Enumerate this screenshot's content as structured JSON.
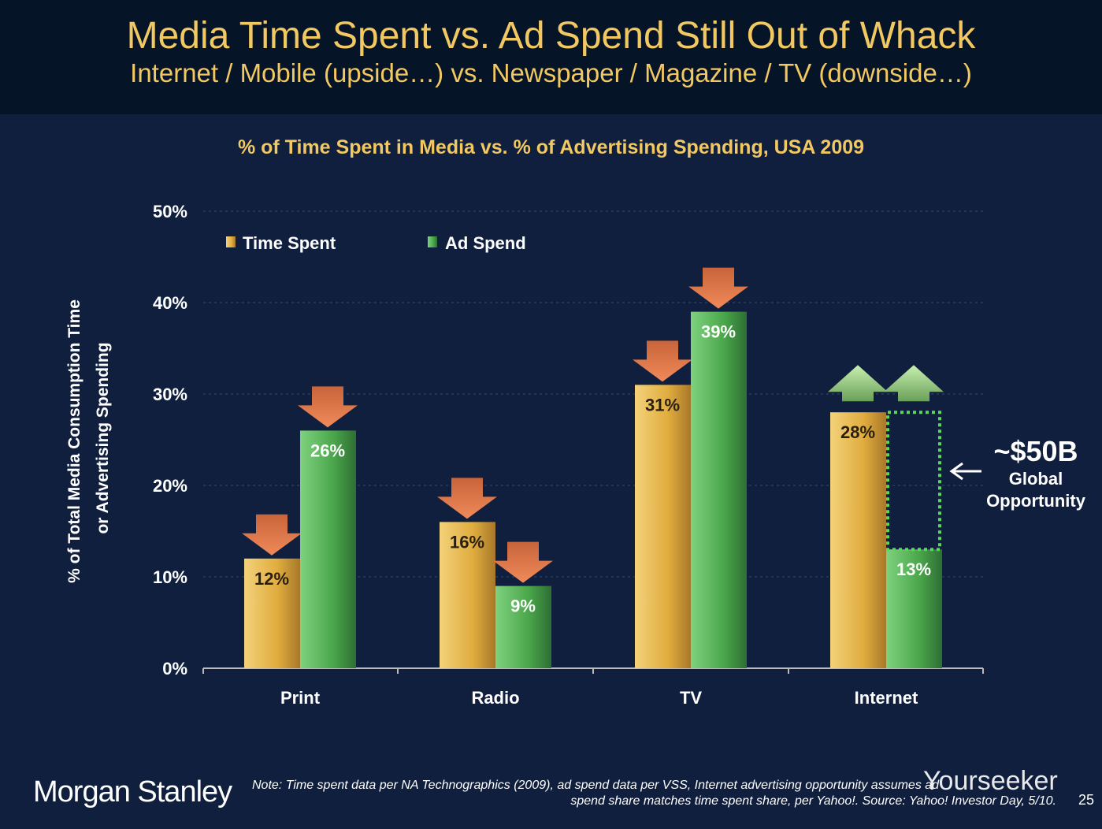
{
  "header": {
    "title": "Media Time Spent vs. Ad Spend Still Out of Whack",
    "subtitle": "Internet / Mobile (upside…) vs. Newspaper / Magazine / TV (downside…)"
  },
  "chart_data": {
    "type": "bar",
    "title": "% of Time Spent in Media vs. % of Advertising Spending, USA 2009",
    "ylabel_line1": "% of Total Media Consumption Time",
    "ylabel_line2": "or Advertising Spending",
    "xlabel": "",
    "ylim": [
      0,
      50
    ],
    "yticks": [
      "0%",
      "10%",
      "20%",
      "30%",
      "40%",
      "50%"
    ],
    "grid": true,
    "legend_position": "top-left",
    "categories": [
      "Print",
      "Radio",
      "TV",
      "Internet"
    ],
    "series": [
      {
        "name": "Time Spent",
        "values": [
          12,
          16,
          31,
          28
        ],
        "labels": [
          "12%",
          "16%",
          "31%",
          "28%"
        ],
        "color": "#e8b94e"
      },
      {
        "name": "Ad Spend",
        "values": [
          26,
          9,
          39,
          13
        ],
        "labels": [
          "26%",
          "9%",
          "39%",
          "13%"
        ],
        "color": "#5cb85c"
      }
    ],
    "arrows": [
      "down",
      "down",
      "down",
      "up"
    ],
    "annotation": {
      "value": "~$50B",
      "line1": "Global",
      "line2": "Opportunity"
    }
  },
  "footer": {
    "logo": "Morgan Stanley",
    "note_line1": "Note: Time spent data per NA Technographics (2009), ad spend data per VSS, Internet advertising opportunity assumes ad",
    "note_line2": "spend share matches time spent share, per Yahoo!. Source: Yahoo! Investor Day, 5/10.",
    "page": "25",
    "watermark": "Yourseeker"
  }
}
